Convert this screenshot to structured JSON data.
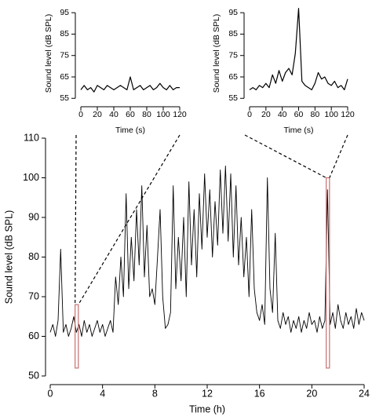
{
  "chart_data": [
    {
      "type": "line",
      "xlabel": "Time (s)",
      "ylabel": "Sound level (dB SPL)",
      "color": "#000000",
      "x": [
        0,
        4,
        8,
        12,
        16,
        20,
        24,
        28,
        32,
        36,
        40,
        44,
        48,
        52,
        56,
        60,
        64,
        68,
        72,
        76,
        80,
        84,
        88,
        92,
        96,
        100,
        104,
        108,
        112,
        116,
        120
      ],
      "values": [
        59,
        61,
        59,
        60,
        58,
        61,
        60,
        59,
        61,
        60,
        59,
        60,
        61,
        60,
        59,
        65,
        59,
        60,
        61,
        59,
        60,
        61,
        59,
        60,
        62,
        60,
        59,
        61,
        59,
        60,
        60
      ],
      "xlim": [
        0,
        120
      ],
      "xticks": [
        0,
        20,
        40,
        60,
        80,
        100,
        120
      ],
      "ylim": [
        54,
        98
      ],
      "yticks": [
        55,
        65,
        75,
        85,
        95
      ]
    },
    {
      "type": "line",
      "xlabel": "Time (s)",
      "ylabel": "Sound level (dB SPL)",
      "color": "#000000",
      "x": [
        0,
        4,
        8,
        12,
        16,
        20,
        24,
        28,
        32,
        36,
        40,
        44,
        48,
        52,
        56,
        60,
        64,
        68,
        72,
        76,
        80,
        84,
        88,
        92,
        96,
        100,
        104,
        108,
        112,
        116,
        120
      ],
      "values": [
        59,
        60,
        59,
        61,
        60,
        62,
        60,
        66,
        62,
        68,
        63,
        67,
        69,
        66,
        76,
        97,
        63,
        61,
        60,
        59,
        62,
        67,
        64,
        65,
        62,
        61,
        63,
        60,
        61,
        59,
        64
      ],
      "xlim": [
        0,
        120
      ],
      "xticks": [
        0,
        20,
        40,
        60,
        80,
        100,
        120
      ],
      "ylim": [
        54,
        98
      ],
      "yticks": [
        55,
        65,
        75,
        85,
        95
      ]
    },
    {
      "type": "line",
      "xlabel": "Time (h)",
      "ylabel": "Sound level (dB SPL)",
      "color": "#000000",
      "x": [
        0,
        0.2,
        0.4,
        0.6,
        0.8,
        1,
        1.2,
        1.4,
        1.6,
        1.8,
        2,
        2.2,
        2.4,
        2.6,
        2.8,
        3,
        3.2,
        3.4,
        3.6,
        3.8,
        4,
        4.2,
        4.4,
        4.6,
        4.8,
        5,
        5.2,
        5.4,
        5.6,
        5.8,
        6,
        6.2,
        6.4,
        6.6,
        6.8,
        7,
        7.2,
        7.4,
        7.6,
        7.8,
        8,
        8.2,
        8.4,
        8.6,
        8.8,
        9,
        9.2,
        9.4,
        9.6,
        9.8,
        10,
        10.2,
        10.4,
        10.6,
        10.8,
        11,
        11.2,
        11.4,
        11.6,
        11.8,
        12,
        12.2,
        12.4,
        12.6,
        12.8,
        13,
        13.2,
        13.4,
        13.6,
        13.8,
        14,
        14.2,
        14.4,
        14.6,
        14.8,
        15,
        15.2,
        15.4,
        15.6,
        15.8,
        16,
        16.2,
        16.4,
        16.6,
        16.8,
        17,
        17.2,
        17.4,
        17.6,
        17.8,
        18,
        18.2,
        18.4,
        18.6,
        18.8,
        19,
        19.2,
        19.4,
        19.6,
        19.8,
        20,
        20.2,
        20.4,
        20.6,
        20.8,
        21,
        21.2,
        21.4,
        21.6,
        21.8,
        22,
        22.2,
        22.4,
        22.6,
        22.8,
        23,
        23.2,
        23.4,
        23.6,
        23.8,
        24
      ],
      "values": [
        61,
        63,
        60,
        64,
        82,
        61,
        63,
        60,
        62,
        65,
        61,
        63,
        60,
        64,
        61,
        63,
        60,
        62,
        64,
        61,
        63,
        60,
        62,
        64,
        61,
        75,
        68,
        80,
        70,
        96,
        72,
        85,
        74,
        92,
        78,
        98,
        75,
        88,
        70,
        72,
        68,
        80,
        92,
        70,
        62,
        63,
        66,
        98,
        72,
        85,
        74,
        90,
        70,
        99,
        78,
        92,
        75,
        96,
        82,
        101,
        85,
        97,
        80,
        94,
        83,
        102,
        86,
        103,
        84,
        101,
        80,
        98,
        78,
        90,
        75,
        85,
        70,
        92,
        72,
        66,
        64,
        68,
        63,
        100,
        72,
        66,
        86,
        64,
        62,
        66,
        63,
        65,
        61,
        64,
        62,
        65,
        61,
        64,
        62,
        66,
        63,
        64,
        61,
        65,
        62,
        64,
        97,
        63,
        66,
        62,
        68,
        64,
        62,
        66,
        63,
        65,
        62,
        67,
        63,
        66,
        64
      ],
      "xlim": [
        0,
        24
      ],
      "xticks": [
        0,
        4,
        8,
        12,
        16,
        20,
        24
      ],
      "ylim": [
        50,
        110
      ],
      "yticks": [
        50,
        60,
        70,
        80,
        90,
        100,
        110
      ],
      "highlights": [
        {
          "xlim": [
            1.9,
            2.15
          ],
          "ylim": [
            52,
            68
          ],
          "color": "#c87070"
        },
        {
          "xlim": [
            21.1,
            21.35
          ],
          "ylim": [
            52,
            100
          ],
          "color": "#c87070"
        }
      ]
    }
  ]
}
